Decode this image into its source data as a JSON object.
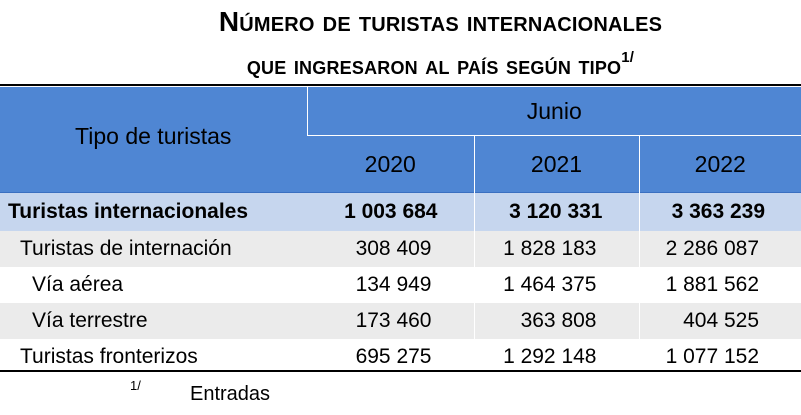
{
  "title": {
    "line1": "Número de turistas internacionales",
    "line2": "que ingresaron al país según tipo",
    "note_mark": "1/"
  },
  "table": {
    "header": {
      "label": "Tipo de turistas",
      "group": "Junio",
      "years": [
        "2020",
        "2021",
        "2022"
      ]
    },
    "rows": [
      {
        "label": "Turistas internacionales",
        "values": [
          "1 003 684",
          "3 120 331",
          "3 363 239"
        ]
      },
      {
        "label": "Turistas de internación",
        "values": [
          "308 409",
          "1 828 183",
          "2 286 087"
        ]
      },
      {
        "label": "Vía aérea",
        "values": [
          "134 949",
          "1 464 375",
          "1 881 562"
        ]
      },
      {
        "label": "Vía terrestre",
        "values": [
          "173 460",
          "363 808",
          "404 525"
        ]
      },
      {
        "label": "Turistas fronterizos",
        "values": [
          "695 275",
          "1 292 148",
          "1 077 152"
        ]
      }
    ]
  },
  "footnote": {
    "mark": "1/",
    "text": "Entradas"
  },
  "colors": {
    "header_bg": "#4f86d3",
    "total_row_bg": "#c6d6ee",
    "alt_row_bg": "#ebebeb"
  }
}
